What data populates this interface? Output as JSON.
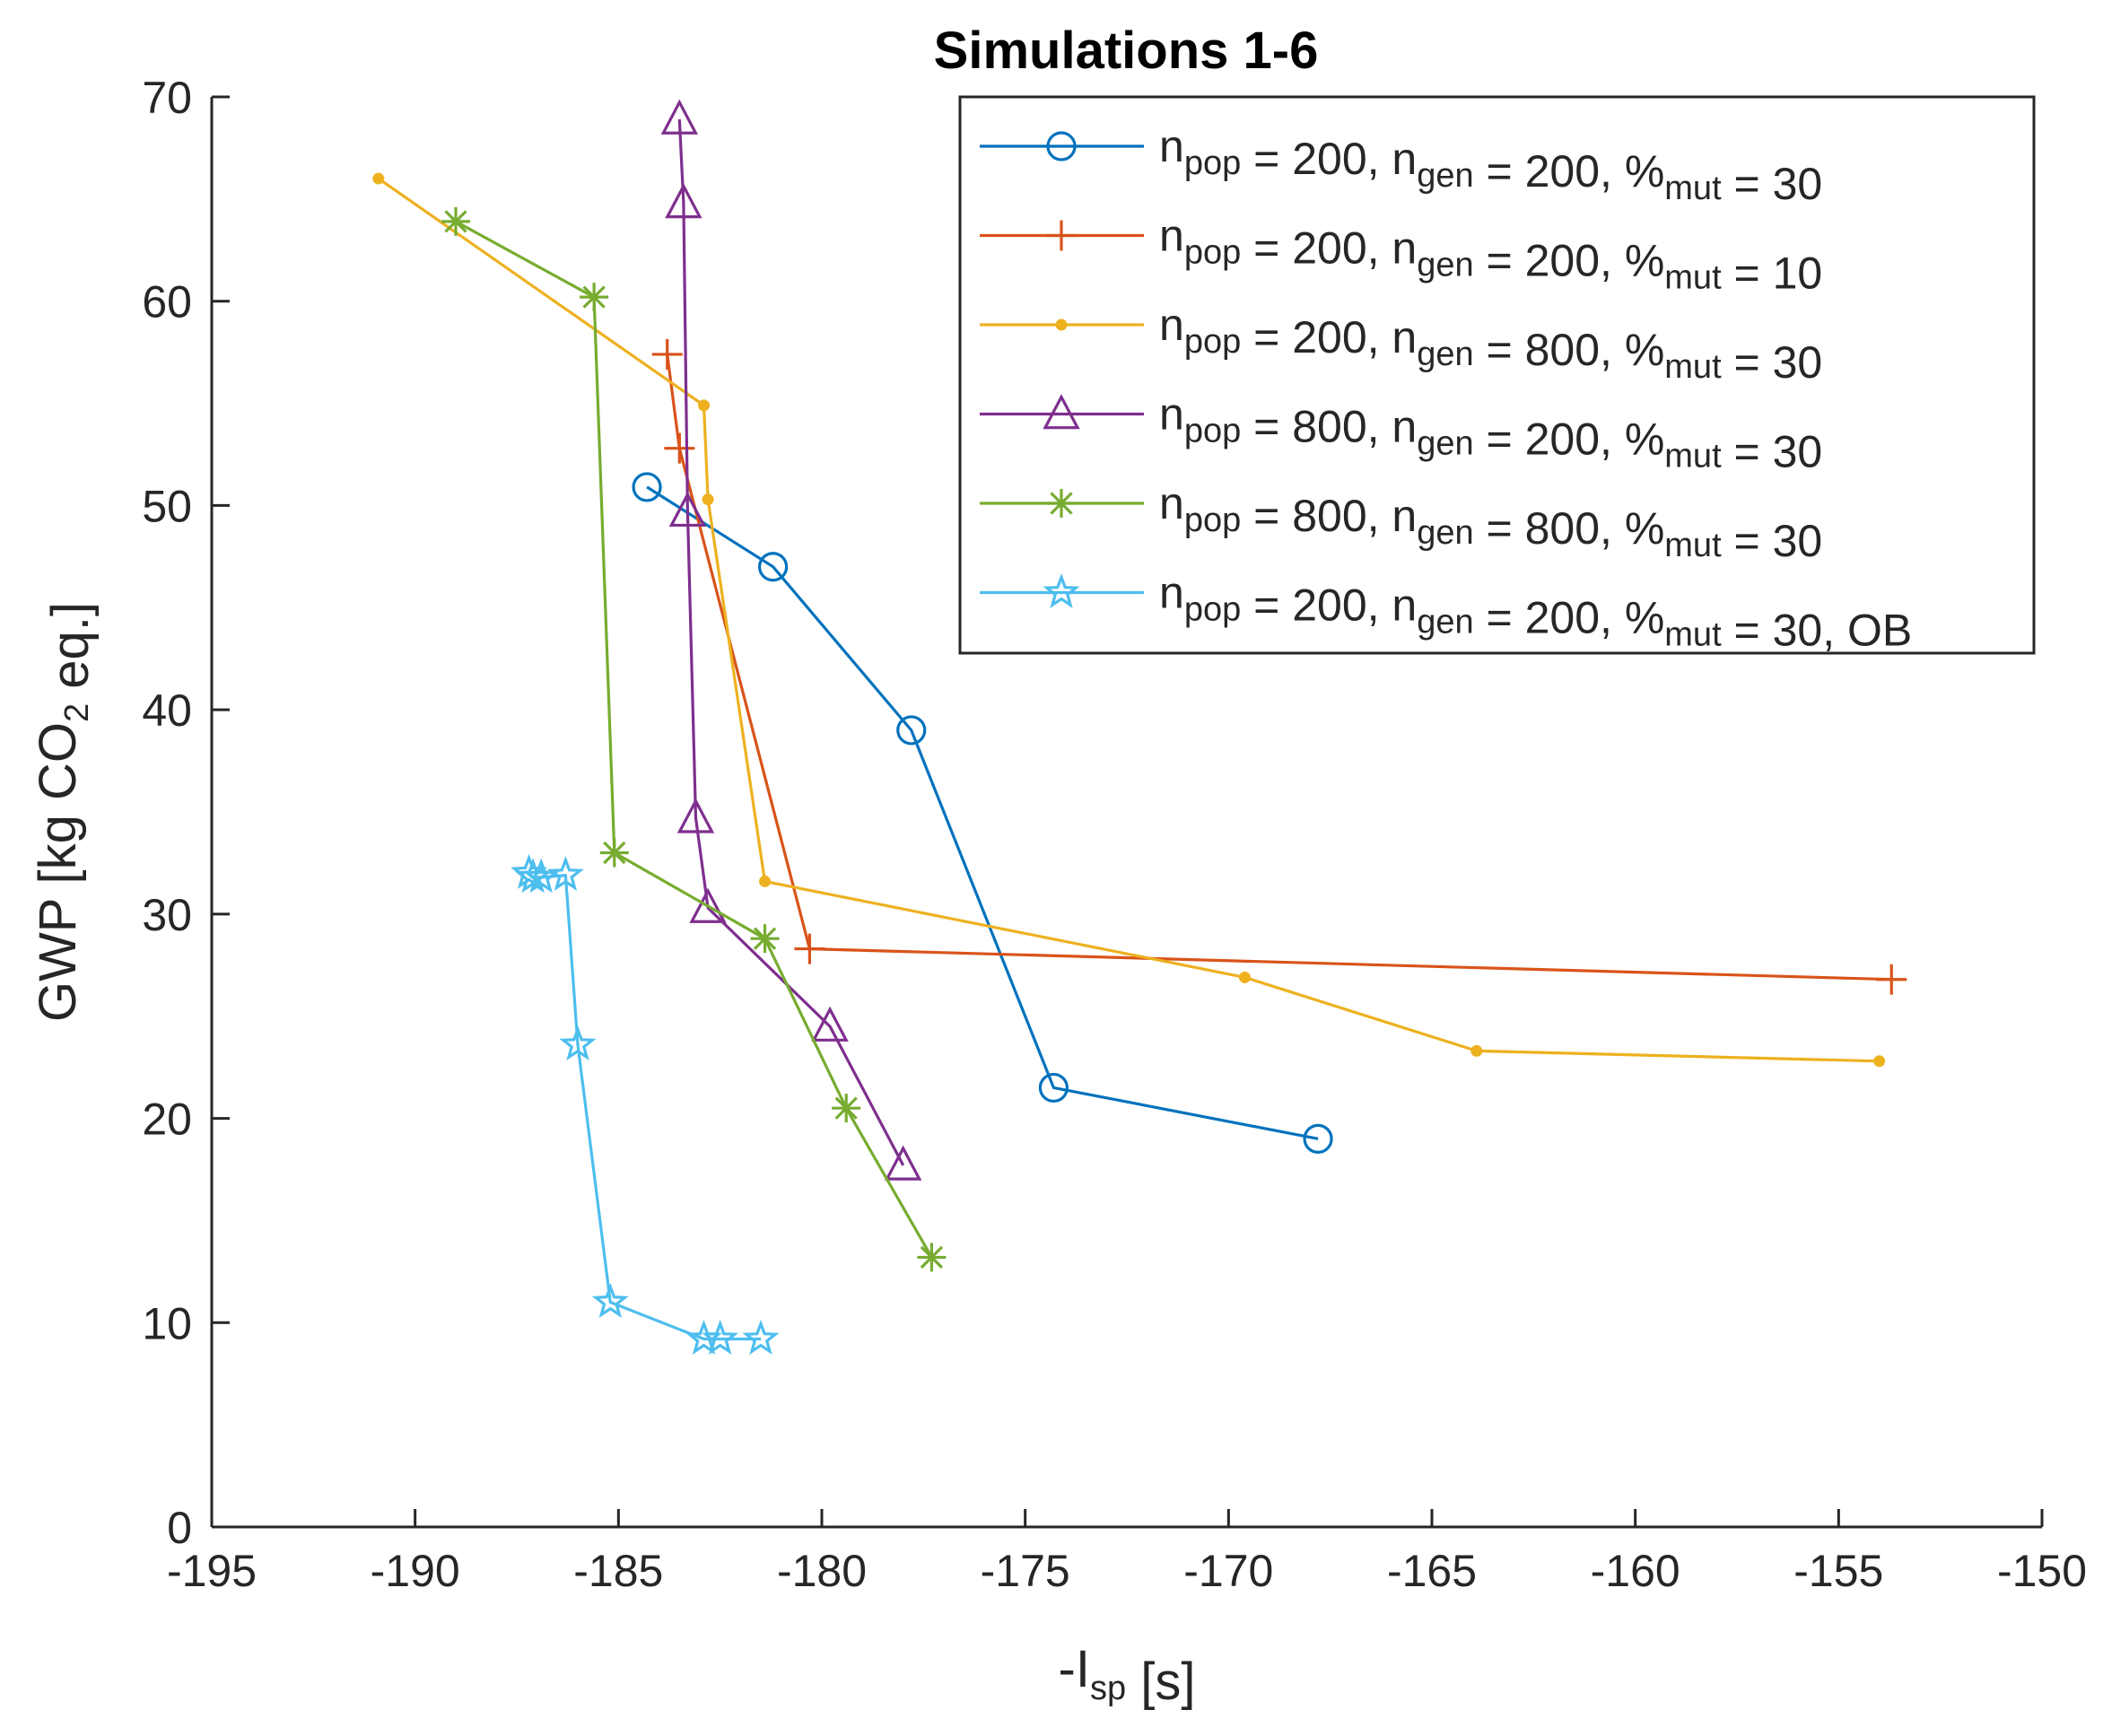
{
  "chart_data": {
    "type": "line",
    "title": "Simulations 1-6",
    "xlabel": {
      "main": "-I",
      "sub": "sp",
      "tail": " [s]"
    },
    "ylabel": {
      "main": "GWP [kg CO",
      "sub": "2",
      "tail": " eq.]"
    },
    "xlim": [
      -195,
      -150
    ],
    "ylim": [
      0,
      70
    ],
    "xticks": [
      -195,
      -190,
      -185,
      -180,
      -175,
      -170,
      -165,
      -160,
      -155,
      -150
    ],
    "xtick_labels": [
      "-195",
      "-190",
      "-185",
      "-180",
      "-175",
      "-170",
      "-165",
      "-160",
      "-155",
      "-150"
    ],
    "yticks": [
      0,
      10,
      20,
      30,
      40,
      50,
      60,
      70
    ],
    "ytick_labels": [
      "0",
      "10",
      "20",
      "30",
      "40",
      "50",
      "60",
      "70"
    ],
    "grid": false,
    "legend_position": "top-right",
    "series": [
      {
        "name": "npop = 200, ngen = 200, %mut = 30",
        "legend": [
          {
            "t": "n"
          },
          {
            "t": "pop",
            "sub": true
          },
          {
            "t": " = 200, n"
          },
          {
            "t": "gen",
            "sub": true
          },
          {
            "t": " = 200, %"
          },
          {
            "t": "mut",
            "sub": true
          },
          {
            "t": " = 30"
          }
        ],
        "color": "#0072bd",
        "marker": "circle",
        "x": [
          -184.3,
          -181.2,
          -177.8,
          -174.3,
          -167.8
        ],
        "y": [
          50.9,
          47.0,
          39.0,
          21.5,
          19.0
        ]
      },
      {
        "name": "npop = 200, ngen = 200, %mut = 10",
        "legend": [
          {
            "t": "n"
          },
          {
            "t": "pop",
            "sub": true
          },
          {
            "t": " = 200, n"
          },
          {
            "t": "gen",
            "sub": true
          },
          {
            "t": " = 200, %"
          },
          {
            "t": "mut",
            "sub": true
          },
          {
            "t": " = 10"
          }
        ],
        "color": "#d95319",
        "marker": "plus",
        "x": [
          -183.8,
          -183.5,
          -180.3,
          -153.7
        ],
        "y": [
          57.4,
          52.8,
          28.3,
          26.8
        ]
      },
      {
        "name": "npop = 200, ngen = 800, %mut = 30",
        "legend": [
          {
            "t": "n"
          },
          {
            "t": "pop",
            "sub": true
          },
          {
            "t": " = 200, n"
          },
          {
            "t": "gen",
            "sub": true
          },
          {
            "t": " = 800, %"
          },
          {
            "t": "mut",
            "sub": true
          },
          {
            "t": " = 30"
          }
        ],
        "color": "#edb120",
        "marker": "dot",
        "x": [
          -190.9,
          -182.9,
          -182.8,
          -181.4,
          -169.6,
          -163.9,
          -154.0
        ],
        "y": [
          66.0,
          54.9,
          50.3,
          31.6,
          26.9,
          23.3,
          22.8
        ]
      },
      {
        "name": "npop = 800, ngen = 200, %mut = 30",
        "legend": [
          {
            "t": "n"
          },
          {
            "t": "pop",
            "sub": true
          },
          {
            "t": " = 800, n"
          },
          {
            "t": "gen",
            "sub": true
          },
          {
            "t": " = 200, %"
          },
          {
            "t": "mut",
            "sub": true
          },
          {
            "t": " = 30"
          }
        ],
        "color": "#7e2f8e",
        "marker": "triangle",
        "x": [
          -183.5,
          -183.4,
          -183.3,
          -183.1,
          -182.8,
          -179.8,
          -178.0
        ],
        "y": [
          68.9,
          64.8,
          49.7,
          34.7,
          30.3,
          24.5,
          17.7
        ]
      },
      {
        "name": "npop = 800, ngen = 800, %mut = 30",
        "legend": [
          {
            "t": "n"
          },
          {
            "t": "pop",
            "sub": true
          },
          {
            "t": " = 800, n"
          },
          {
            "t": "gen",
            "sub": true
          },
          {
            "t": " = 800, %"
          },
          {
            "t": "mut",
            "sub": true
          },
          {
            "t": " = 30"
          }
        ],
        "color": "#77ac30",
        "marker": "asterisk",
        "x": [
          -189.0,
          -185.6,
          -185.1,
          -181.4,
          -179.4,
          -177.3
        ],
        "y": [
          63.9,
          60.2,
          33.0,
          28.8,
          20.5,
          13.2
        ]
      },
      {
        "name": "npop = 200, ngen = 200, %mut = 30, OB",
        "legend": [
          {
            "t": "n"
          },
          {
            "t": "pop",
            "sub": true
          },
          {
            "t": " = 200, n"
          },
          {
            "t": "gen",
            "sub": true
          },
          {
            "t": " = 200, %"
          },
          {
            "t": "mut",
            "sub": true
          },
          {
            "t": " = 30, OB"
          }
        ],
        "color": "#4dbeee",
        "marker": "star",
        "x": [
          -187.2,
          -187.1,
          -186.9,
          -186.3,
          -186.0,
          -185.2,
          -182.9,
          -182.5,
          -181.5
        ],
        "y": [
          32.0,
          31.8,
          31.8,
          31.9,
          23.6,
          11.0,
          9.2,
          9.2,
          9.2
        ]
      }
    ]
  }
}
